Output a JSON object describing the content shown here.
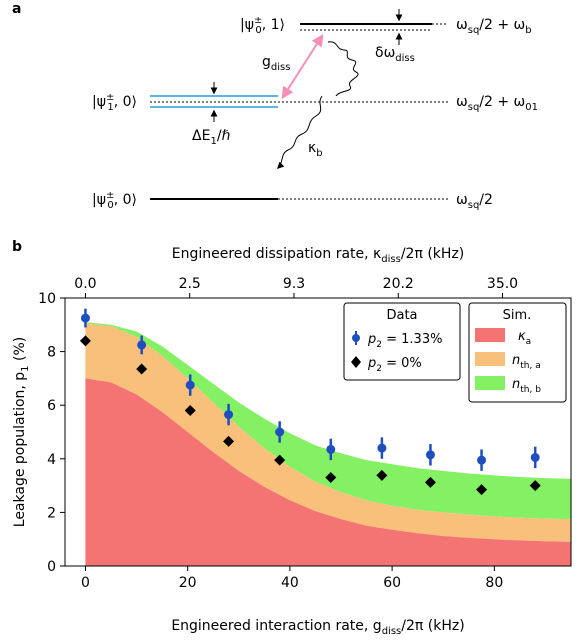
{
  "panel_a": {
    "label": "a",
    "levels": {
      "top_left": "|ψ",
      "top_sup": "±",
      "top_sub": "0",
      "top_tail": ", 1⟩",
      "mid_left": "|ψ",
      "mid_sup": "±",
      "mid_sub": "1",
      "mid_tail": ", 0⟩",
      "bot_left": "|ψ",
      "bot_sup": "±",
      "bot_sub": "0",
      "bot_tail": ", 0⟩"
    },
    "energies": {
      "top_main": "ω",
      "top_sub1": "sq",
      "top_mid": "/2 + ω",
      "top_sub2": "b",
      "mid_main": "ω",
      "mid_sub1": "sq",
      "mid_mid": "/2 + ω",
      "mid_sub2": "01",
      "bot_main": "ω",
      "bot_sub1": "sq",
      "bot_mid": "/2"
    },
    "annotations": {
      "g_main": "g",
      "g_sub": "diss",
      "kappa_main": "κ",
      "kappa_sub": "b",
      "delta_main": "δω",
      "delta_sub": "diss",
      "dE_main": "ΔE",
      "dE_sub": "1",
      "dE_tail": "/ℏ"
    },
    "colors": {
      "level_blue": "#5fb4e6",
      "coupling_pink": "#f48fb6"
    }
  },
  "panel_b": {
    "label": "b",
    "top_axis": {
      "label_main": "Engineered dissipation rate, κ",
      "label_sub": "diss",
      "label_tail": "/2π (kHz)",
      "ticks": [
        "0.0",
        "2.5",
        "9.3",
        "20.2",
        "35.0"
      ]
    },
    "x_axis": {
      "label_main": "Engineered interaction rate, g",
      "label_sub": "diss",
      "label_tail": "/2π (kHz)"
    },
    "y_axis": {
      "label_main": "Leakage population, p",
      "label_sub": "1",
      "label_tail": " (%)"
    },
    "legend_data": {
      "title": "Data",
      "item1_main": "p",
      "item1_sub": "2",
      "item1_tail": " = 1.33%",
      "item2_main": "p",
      "item2_sub": "2",
      "item2_tail": " = 0%"
    },
    "legend_sim": {
      "title": "Sim.",
      "item1_main": "κ",
      "item1_sub": "a",
      "item2_main": "n",
      "item2_sub": "th, a",
      "item3_main": "n",
      "item3_sub": "th, b"
    }
  },
  "chart_data": {
    "type": "area",
    "x_label": "Engineered interaction rate, g_diss/2π (kHz)",
    "y_label": "Leakage population, p_1 (%)",
    "xlim": [
      -4,
      95
    ],
    "ylim": [
      0,
      10
    ],
    "x_ticks": [
      0,
      20,
      40,
      60,
      80
    ],
    "y_ticks": [
      0,
      2,
      4,
      6,
      8,
      10
    ],
    "top_axis_tick_positions": [
      0,
      20.4,
      40.8,
      61.2,
      81.6
    ],
    "top_axis_tick_labels": [
      "0.0",
      "2.5",
      "9.3",
      "20.2",
      "35.0"
    ],
    "colors": {
      "kappa_a": "#f47474",
      "n_th_a": "#f8c07a",
      "n_th_b": "#84f064",
      "p2_1_33": "#1f4fbf",
      "p2_0": "#000000"
    },
    "stacked_areas": {
      "x": [
        0,
        5,
        10,
        15,
        20,
        25,
        30,
        35,
        40,
        45,
        50,
        55,
        60,
        65,
        70,
        75,
        80,
        85,
        90,
        95
      ],
      "kappa_a": [
        7.0,
        6.85,
        6.4,
        5.75,
        5.0,
        4.25,
        3.55,
        2.95,
        2.45,
        2.05,
        1.75,
        1.5,
        1.35,
        1.22,
        1.12,
        1.05,
        1.0,
        0.95,
        0.92,
        0.9
      ],
      "n_th_a": [
        9.05,
        8.95,
        8.55,
        7.85,
        7.0,
        6.1,
        5.2,
        4.4,
        3.7,
        3.15,
        2.75,
        2.45,
        2.25,
        2.1,
        2.0,
        1.92,
        1.85,
        1.8,
        1.77,
        1.75
      ],
      "n_th_b": [
        9.1,
        9.0,
        8.75,
        8.2,
        7.5,
        6.8,
        6.1,
        5.5,
        4.95,
        4.5,
        4.2,
        3.95,
        3.8,
        3.65,
        3.55,
        3.45,
        3.38,
        3.32,
        3.28,
        3.25
      ]
    },
    "series": [
      {
        "name": "p2 = 1.33%",
        "x": [
          0,
          11,
          20.5,
          28,
          38,
          48,
          58,
          67.5,
          77.5,
          88
        ],
        "y": [
          9.25,
          8.25,
          6.75,
          5.65,
          5.0,
          4.35,
          4.4,
          4.15,
          3.95,
          4.05
        ],
        "yerr": [
          0.35,
          0.35,
          0.4,
          0.4,
          0.4,
          0.4,
          0.4,
          0.4,
          0.4,
          0.4
        ]
      },
      {
        "name": "p2 = 0%",
        "x": [
          0,
          11,
          20.5,
          28,
          38,
          48,
          58,
          67.5,
          77.5,
          88
        ],
        "y": [
          8.4,
          7.35,
          5.8,
          4.65,
          3.95,
          3.3,
          3.38,
          3.12,
          2.85,
          3.0
        ]
      }
    ]
  }
}
